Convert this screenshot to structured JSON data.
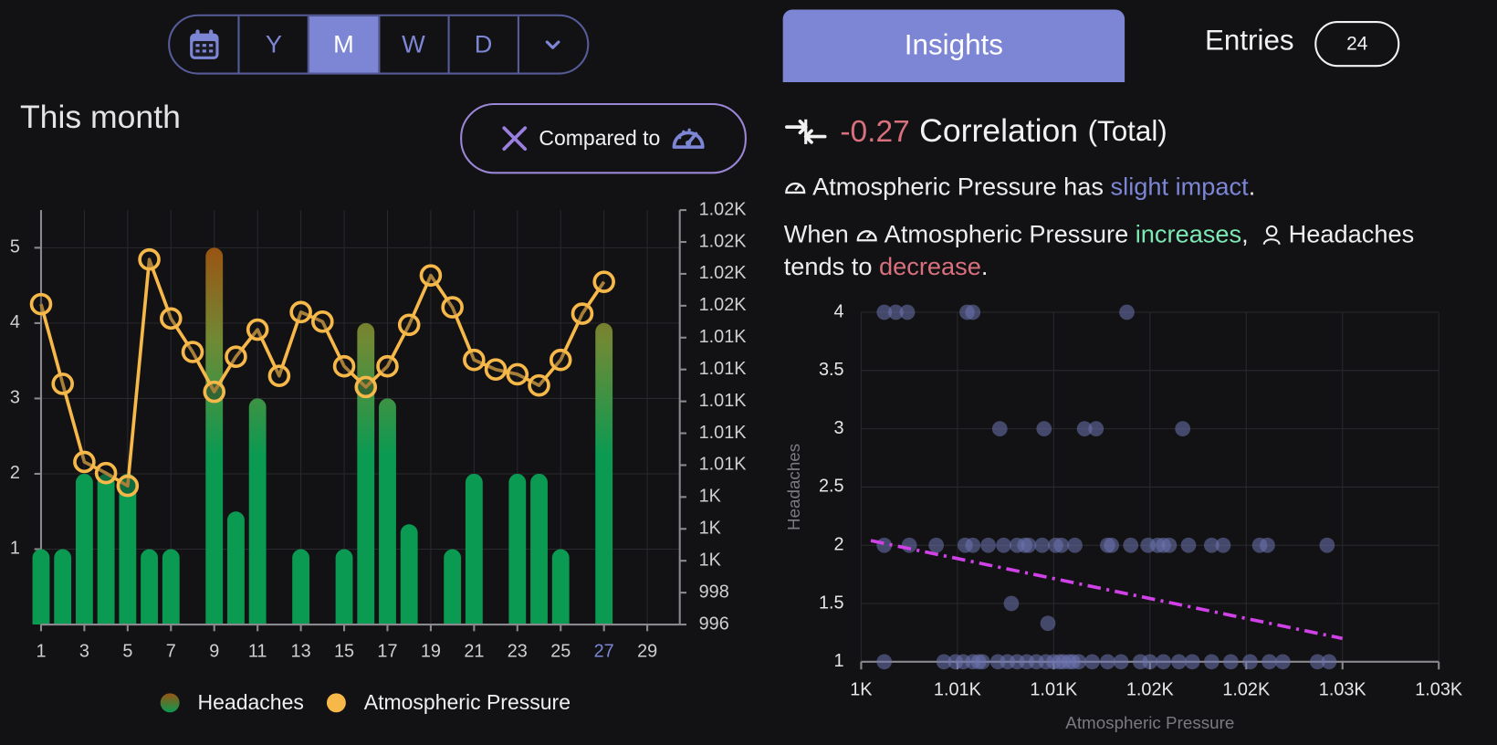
{
  "period_selector": {
    "options": [
      "Y",
      "M",
      "W",
      "D"
    ],
    "selected": 1
  },
  "section_title": "This month",
  "compare_button": "Compared to",
  "tabs": {
    "insights": "Insights",
    "entries": "Entries",
    "entries_count": 24
  },
  "insight": {
    "value": -0.27,
    "label": "Correlation",
    "scope": "(Total)",
    "impact": [
      "Atmospheric Pressure has ",
      "slight impact",
      "."
    ],
    "trend_line1": [
      "When ",
      "Atmospheric Pressure ",
      "increases",
      ",",
      "Headaches"
    ],
    "trend_line2": [
      "tends to ",
      "decrease",
      "."
    ]
  },
  "chart_data": [
    {
      "type": "combo",
      "x": [
        1,
        2,
        3,
        4,
        5,
        6,
        7,
        8,
        9,
        10,
        11,
        12,
        13,
        14,
        15,
        16,
        17,
        18,
        19,
        20,
        21,
        22,
        23,
        24,
        25,
        26,
        27
      ],
      "xlim": [
        1,
        30.5
      ],
      "xticks": [
        1,
        3,
        5,
        7,
        9,
        11,
        13,
        15,
        17,
        19,
        21,
        23,
        25,
        27,
        29
      ],
      "today": 27,
      "today_color": "#7c86d4",
      "ylim": [
        0,
        5.5
      ],
      "yticks": [
        1,
        2,
        3,
        4,
        5
      ],
      "y2lim": [
        996,
        1022
      ],
      "y2ticks": [
        996,
        998,
        {
          "value": 1000,
          "label": "1K"
        },
        {
          "value": 1002,
          "label": "1K"
        },
        {
          "value": 1004,
          "label": "1K"
        },
        {
          "value": 1006,
          "label": "1.01K"
        },
        {
          "value": 1008,
          "label": "1.01K"
        },
        {
          "value": 1010,
          "label": "1.01K"
        },
        {
          "value": 1012,
          "label": "1.01K"
        },
        {
          "value": 1014,
          "label": "1.01K"
        },
        {
          "value": 1016,
          "label": "1.02K"
        },
        {
          "value": 1018,
          "label": "1.02K"
        },
        {
          "value": 1020,
          "label": "1.02K"
        },
        {
          "value": 1022,
          "label": "1.02K"
        }
      ],
      "grid": true,
      "series": [
        {
          "name": "Headaches",
          "kind": "bar",
          "color": "#0b9a52",
          "top_color": "#9a5412",
          "values": [
            1,
            1,
            2,
            2,
            2,
            1,
            1,
            null,
            5,
            1.5,
            3,
            null,
            1,
            null,
            1,
            4,
            3,
            1.33,
            null,
            1,
            2,
            null,
            2,
            2,
            1,
            null,
            4
          ]
        },
        {
          "name": "Atmospheric Pressure",
          "kind": "line",
          "axis": "y2",
          "color": "#f7b84a",
          "values": [
            1016.1,
            1011.1,
            1006.2,
            1005.5,
            1004.7,
            1018.9,
            1015.2,
            1013.1,
            1010.6,
            1012.8,
            1014.5,
            1011.6,
            1015.6,
            1015.0,
            1012.2,
            1010.9,
            1012.2,
            1014.8,
            1017.9,
            1015.9,
            1012.6,
            1012.0,
            1011.7,
            1011.0,
            1012.6,
            1015.5,
            1017.5
          ]
        }
      ]
    },
    {
      "type": "scatter",
      "xlabel": "Atmospheric Pressure",
      "ylabel": "Headaches",
      "color": "#6e74b0",
      "x": [
        1001.2,
        1001.8,
        1002.4,
        1005.5,
        1005.8,
        1013.8,
        1007.2,
        1009.5,
        1011.6,
        1012.2,
        1016.7,
        1001.2,
        1002.5,
        1003.9,
        1005.4,
        1005.8,
        1006.6,
        1007.4,
        1008.1,
        1008.5,
        1008.7,
        1009.4,
        1010.1,
        1010.4,
        1011.1,
        1012.8,
        1013.0,
        1014.0,
        1014.9,
        1015.4,
        1015.7,
        1016.0,
        1017.0,
        1018.2,
        1018.8,
        1020.7,
        1021.1,
        1024.2,
        1007.8,
        1009.7,
        1001.2,
        1004.3,
        1004.9,
        1005.3,
        1005.8,
        1006.1,
        1006.3,
        1007.1,
        1007.6,
        1008.1,
        1008.6,
        1009.1,
        1009.6,
        1010.0,
        1010.3,
        1010.5,
        1010.8,
        1011.0,
        1011.3,
        1012.0,
        1012.8,
        1013.5,
        1014.5,
        1015.0,
        1015.7,
        1016.5,
        1017.2,
        1018.2,
        1019.2,
        1020.2,
        1021.2,
        1021.9,
        1023.7,
        1024.3
      ],
      "values": [
        4,
        4,
        4,
        4,
        4,
        4,
        3,
        3,
        3,
        3,
        3,
        2,
        2,
        2,
        2,
        2,
        2,
        2,
        2,
        2,
        2,
        2,
        2,
        2,
        2,
        2,
        2,
        2,
        2,
        2,
        2,
        2,
        2,
        2,
        2,
        2,
        2,
        2,
        1.5,
        1.33,
        1,
        1,
        1,
        1,
        1,
        1,
        1,
        1,
        1,
        1,
        1,
        1,
        1,
        1,
        1,
        1,
        1,
        1,
        1,
        1,
        1,
        1,
        1,
        1,
        1,
        1,
        1,
        1,
        1,
        1,
        1,
        1,
        1,
        1
      ],
      "xlim": [
        1000,
        1030
      ],
      "xticks": [
        {
          "value": 1000,
          "label": "1K"
        },
        {
          "value": 1005,
          "label": "1.01K"
        },
        {
          "value": 1010,
          "label": "1.01K"
        },
        {
          "value": 1015,
          "label": "1.02K"
        },
        {
          "value": 1020,
          "label": "1.02K"
        },
        {
          "value": 1025,
          "label": "1.03K"
        },
        {
          "value": 1030,
          "label": "1.03K"
        }
      ],
      "ylim": [
        1,
        4
      ],
      "yticks": [
        1,
        1.5,
        2,
        2.5,
        3,
        3.5,
        4
      ],
      "grid": true,
      "trendline": {
        "x": [
          1000.5,
          1025
        ],
        "values": [
          2.04,
          1.2
        ],
        "color": "#d042e8"
      }
    }
  ]
}
